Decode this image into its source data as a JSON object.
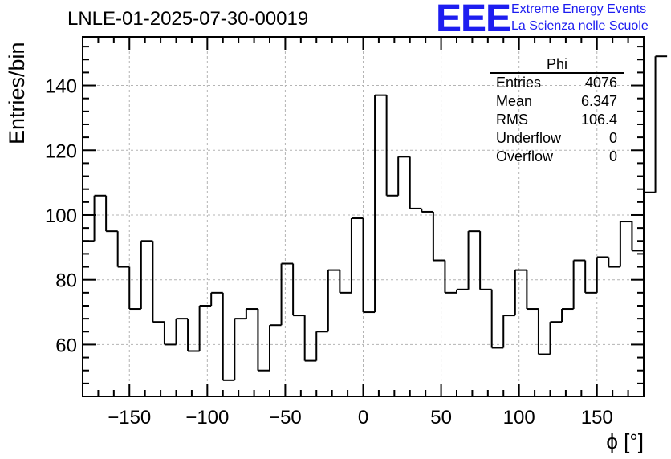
{
  "banner": {
    "logo_text": "EEE",
    "line1": "Extreme Energy Events",
    "line2": "La Scienza nelle Scuole",
    "color": "#1d1df0"
  },
  "stats_box": {
    "name": "Phi",
    "rows": [
      {
        "label": "Entries",
        "value": "4076"
      },
      {
        "label": "Mean",
        "value": "6.347"
      },
      {
        "label": "RMS",
        "value": "106.4"
      },
      {
        "label": "Underflow",
        "value": "0"
      },
      {
        "label": "Overflow",
        "value": "0"
      }
    ]
  },
  "chart_data": {
    "type": "bar",
    "style": "step-histogram",
    "title": "LNLE-01-2025-07-30-00019",
    "xlabel": "ϕ [°]",
    "ylabel": "Entries/bin",
    "xlim": [
      -180,
      180
    ],
    "ylim": [
      44,
      155
    ],
    "bin_width": 7.5,
    "x_ticks": [
      -150,
      -100,
      -50,
      0,
      50,
      100,
      150
    ],
    "x_tick_labels": [
      "−150",
      "−100",
      "−50",
      "0",
      "50",
      "100",
      "150"
    ],
    "y_ticks": [
      60,
      80,
      100,
      120,
      140
    ],
    "y_tick_labels": [
      "60",
      "80",
      "100",
      "120",
      "140"
    ],
    "grid": true,
    "line_color": "#000000",
    "values": [
      92,
      106,
      95,
      84,
      71,
      92,
      67,
      60,
      68,
      58,
      72,
      76,
      49,
      68,
      71,
      52,
      66,
      85,
      69,
      55,
      64,
      83,
      76,
      99,
      70,
      137,
      106,
      118,
      102,
      101,
      86,
      76,
      77,
      95,
      77,
      59,
      69,
      83,
      71,
      57,
      67,
      71,
      86,
      76,
      87,
      84,
      98,
      89,
      107,
      149
    ]
  }
}
